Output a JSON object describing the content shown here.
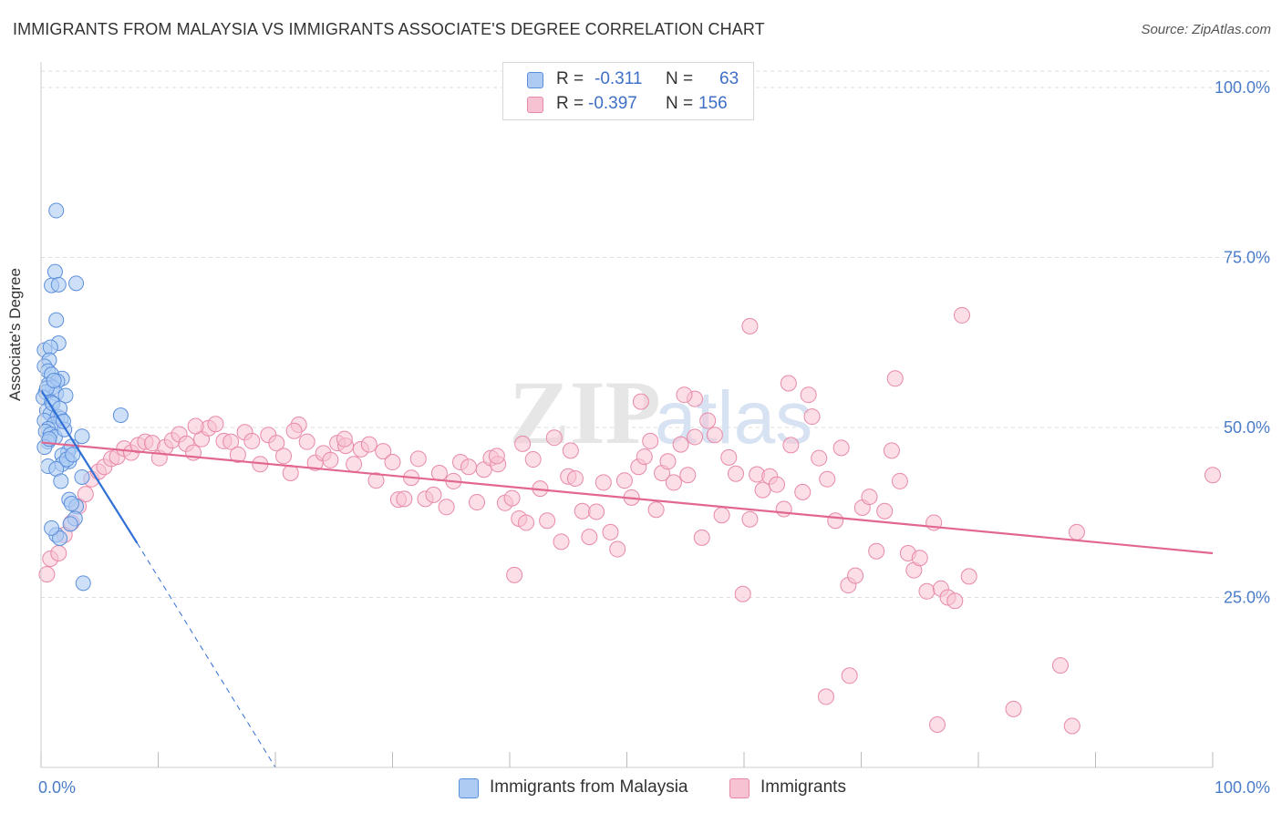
{
  "header": {
    "title": "IMMIGRANTS FROM MALAYSIA VS IMMIGRANTS ASSOCIATE'S DEGREE CORRELATION CHART",
    "source": "Source: ZipAtlas.com"
  },
  "legend": {
    "rows": [
      {
        "r_label": "R =",
        "r_value": "-0.311",
        "n_label": "N =",
        "n_value": "63"
      },
      {
        "r_label": "R =",
        "r_value": "-0.397",
        "n_label": "N =",
        "n_value": "156"
      }
    ]
  },
  "bottom_legend": {
    "series1": "Immigrants from Malaysia",
    "series2": "Immigrants"
  },
  "colors": {
    "blue_fill": "#aecbf3",
    "blue_stroke": "#5b8fdb",
    "blue_line": "#2f6fd6",
    "pink_fill": "#f7c2d2",
    "pink_stroke": "#e889a9",
    "pink_line": "#e2678f",
    "tick_text": "#4a7cc9"
  },
  "chart_data": {
    "type": "scatter",
    "title": "IMMIGRANTS FROM MALAYSIA VS IMMIGRANTS ASSOCIATE'S DEGREE CORRELATION CHART",
    "xlabel": "",
    "ylabel": "Associate's Degree",
    "xlim": [
      0,
      100
    ],
    "ylim": [
      0,
      100
    ],
    "x_tick_labels": [
      "0.0%",
      "100.0%"
    ],
    "y_tick_labels": [
      "25.0%",
      "50.0%",
      "75.0%",
      "100.0%"
    ],
    "y_ticks": [
      25,
      50,
      75,
      100
    ],
    "watermark": "ZIPatlas",
    "series": [
      {
        "name": "Immigrants from Malaysia",
        "r": -0.311,
        "n": 63,
        "trend": {
          "x0": 0,
          "y0": 55.5,
          "x1": 8.2,
          "y1": 33.0,
          "dash_x1": 20,
          "dash_y1": 0
        },
        "points": [
          [
            1.3,
            81.9
          ],
          [
            1.2,
            72.9
          ],
          [
            0.9,
            70.9
          ],
          [
            1.5,
            71.0
          ],
          [
            3.0,
            71.2
          ],
          [
            1.3,
            65.8
          ],
          [
            1.5,
            62.4
          ],
          [
            0.3,
            61.4
          ],
          [
            0.8,
            61.8
          ],
          [
            0.7,
            59.9
          ],
          [
            0.3,
            59.0
          ],
          [
            0.6,
            58.3
          ],
          [
            0.9,
            57.8
          ],
          [
            1.8,
            57.2
          ],
          [
            1.4,
            56.8
          ],
          [
            0.6,
            56.3
          ],
          [
            1.0,
            55.9
          ],
          [
            0.4,
            55.2
          ],
          [
            1.3,
            55.0
          ],
          [
            2.1,
            54.7
          ],
          [
            0.2,
            54.4
          ],
          [
            0.9,
            53.7
          ],
          [
            0.5,
            52.5
          ],
          [
            0.8,
            52.0
          ],
          [
            1.4,
            51.6
          ],
          [
            1.7,
            51.3
          ],
          [
            0.3,
            51.0
          ],
          [
            1.1,
            50.5
          ],
          [
            0.6,
            49.8
          ],
          [
            0.4,
            49.4
          ],
          [
            0.8,
            49.0
          ],
          [
            1.2,
            48.6
          ],
          [
            3.5,
            48.7
          ],
          [
            0.6,
            47.9
          ],
          [
            2.6,
            47.2
          ],
          [
            2.3,
            46.4
          ],
          [
            1.8,
            45.9
          ],
          [
            2.4,
            45.0
          ],
          [
            1.8,
            44.6
          ],
          [
            0.6,
            44.3
          ],
          [
            1.3,
            43.9
          ],
          [
            3.5,
            42.7
          ],
          [
            1.7,
            42.1
          ],
          [
            2.4,
            39.4
          ],
          [
            3.0,
            38.4
          ],
          [
            2.6,
            38.8
          ],
          [
            2.9,
            36.6
          ],
          [
            2.5,
            35.8
          ],
          [
            1.3,
            34.2
          ],
          [
            1.6,
            33.7
          ],
          [
            0.9,
            35.2
          ],
          [
            3.6,
            27.1
          ],
          [
            6.8,
            51.8
          ],
          [
            1.0,
            53.5
          ],
          [
            0.5,
            55.8
          ],
          [
            2.0,
            49.7
          ],
          [
            0.3,
            47.1
          ],
          [
            1.6,
            52.8
          ],
          [
            2.2,
            45.3
          ],
          [
            1.1,
            56.9
          ],
          [
            2.7,
            46.0
          ],
          [
            0.7,
            48.3
          ],
          [
            1.9,
            50.9
          ]
        ]
      },
      {
        "name": "Immigrants",
        "r": -0.397,
        "n": 156,
        "trend": {
          "x0": 0,
          "y0": 47.8,
          "x1": 100,
          "y1": 31.5
        },
        "points": [
          [
            0.5,
            28.4
          ],
          [
            0.8,
            30.7
          ],
          [
            1.5,
            31.5
          ],
          [
            2.0,
            34.2
          ],
          [
            2.6,
            36.0
          ],
          [
            3.2,
            38.4
          ],
          [
            3.8,
            40.2
          ],
          [
            4.3,
            42.4
          ],
          [
            4.9,
            43.5
          ],
          [
            5.4,
            44.2
          ],
          [
            6.0,
            45.4
          ],
          [
            6.5,
            45.7
          ],
          [
            7.1,
            46.9
          ],
          [
            7.7,
            46.3
          ],
          [
            8.3,
            47.4
          ],
          [
            8.9,
            47.9
          ],
          [
            9.5,
            47.7
          ],
          [
            10.1,
            45.5
          ],
          [
            10.6,
            47.1
          ],
          [
            11.2,
            48.1
          ],
          [
            11.8,
            49.0
          ],
          [
            12.4,
            47.6
          ],
          [
            13.0,
            46.3
          ],
          [
            13.7,
            48.3
          ],
          [
            14.3,
            49.9
          ],
          [
            14.9,
            50.5
          ],
          [
            15.6,
            48.0
          ],
          [
            16.2,
            47.9
          ],
          [
            16.8,
            46.0
          ],
          [
            17.4,
            49.3
          ],
          [
            18.0,
            48.0
          ],
          [
            18.7,
            44.6
          ],
          [
            19.4,
            48.9
          ],
          [
            20.1,
            47.7
          ],
          [
            20.7,
            45.8
          ],
          [
            21.3,
            43.3
          ],
          [
            22.0,
            50.4
          ],
          [
            22.7,
            47.9
          ],
          [
            23.4,
            44.8
          ],
          [
            24.1,
            46.2
          ],
          [
            24.7,
            45.2
          ],
          [
            25.3,
            47.7
          ],
          [
            26.0,
            47.3
          ],
          [
            26.7,
            44.6
          ],
          [
            27.3,
            46.8
          ],
          [
            28.0,
            47.5
          ],
          [
            28.6,
            42.2
          ],
          [
            29.2,
            46.5
          ],
          [
            30.0,
            44.9
          ],
          [
            30.5,
            39.4
          ],
          [
            31.0,
            39.5
          ],
          [
            31.6,
            42.6
          ],
          [
            32.2,
            45.4
          ],
          [
            32.8,
            39.5
          ],
          [
            33.5,
            40.1
          ],
          [
            34.0,
            43.3
          ],
          [
            34.6,
            38.3
          ],
          [
            35.2,
            42.1
          ],
          [
            35.8,
            44.9
          ],
          [
            36.5,
            44.2
          ],
          [
            37.2,
            39.0
          ],
          [
            37.8,
            43.8
          ],
          [
            38.4,
            45.5
          ],
          [
            39.0,
            44.6
          ],
          [
            39.6,
            38.9
          ],
          [
            40.2,
            39.6
          ],
          [
            40.8,
            36.6
          ],
          [
            41.4,
            36.0
          ],
          [
            42.0,
            45.3
          ],
          [
            42.6,
            41.0
          ],
          [
            43.2,
            36.3
          ],
          [
            43.8,
            48.5
          ],
          [
            44.4,
            33.2
          ],
          [
            45.0,
            42.8
          ],
          [
            45.6,
            42.5
          ],
          [
            46.2,
            37.7
          ],
          [
            46.8,
            33.9
          ],
          [
            47.4,
            37.6
          ],
          [
            48.0,
            41.9
          ],
          [
            48.6,
            34.6
          ],
          [
            49.2,
            32.1
          ],
          [
            49.8,
            42.2
          ],
          [
            50.4,
            39.7
          ],
          [
            51.0,
            44.2
          ],
          [
            51.5,
            45.7
          ],
          [
            52.0,
            48.0
          ],
          [
            52.5,
            37.9
          ],
          [
            53.0,
            43.3
          ],
          [
            53.5,
            45.0
          ],
          [
            54.0,
            41.9
          ],
          [
            54.6,
            47.5
          ],
          [
            55.2,
            43.0
          ],
          [
            55.8,
            48.6
          ],
          [
            56.4,
            33.8
          ],
          [
            56.9,
            51.0
          ],
          [
            57.5,
            48.9
          ],
          [
            58.1,
            37.1
          ],
          [
            58.7,
            45.6
          ],
          [
            59.3,
            43.2
          ],
          [
            59.9,
            25.5
          ],
          [
            60.5,
            36.5
          ],
          [
            61.1,
            43.1
          ],
          [
            61.6,
            40.8
          ],
          [
            62.2,
            42.8
          ],
          [
            62.8,
            41.6
          ],
          [
            63.4,
            38.0
          ],
          [
            64.0,
            47.4
          ],
          [
            63.8,
            56.5
          ],
          [
            65.0,
            40.5
          ],
          [
            65.5,
            54.8
          ],
          [
            65.8,
            51.6
          ],
          [
            66.4,
            45.5
          ],
          [
            67.1,
            42.4
          ],
          [
            67.8,
            36.3
          ],
          [
            68.3,
            47.0
          ],
          [
            68.9,
            26.8
          ],
          [
            69.5,
            28.2
          ],
          [
            70.1,
            38.2
          ],
          [
            70.7,
            39.8
          ],
          [
            71.3,
            31.8
          ],
          [
            72.0,
            37.7
          ],
          [
            72.6,
            46.6
          ],
          [
            73.3,
            42.1
          ],
          [
            74.0,
            31.5
          ],
          [
            74.5,
            29.0
          ],
          [
            75.0,
            30.8
          ],
          [
            75.6,
            25.9
          ],
          [
            76.2,
            36.0
          ],
          [
            76.8,
            26.3
          ],
          [
            77.4,
            25.0
          ],
          [
            78.0,
            24.5
          ],
          [
            78.6,
            66.5
          ],
          [
            79.2,
            28.1
          ],
          [
            72.9,
            57.2
          ],
          [
            60.5,
            64.9
          ],
          [
            55.8,
            54.2
          ],
          [
            54.9,
            54.8
          ],
          [
            51.2,
            53.8
          ],
          [
            40.4,
            28.3
          ],
          [
            67.0,
            10.4
          ],
          [
            69.0,
            13.5
          ],
          [
            76.5,
            6.3
          ],
          [
            83.0,
            8.6
          ],
          [
            88.0,
            6.1
          ],
          [
            87.0,
            15.0
          ],
          [
            88.4,
            34.6
          ],
          [
            100.0,
            43.0
          ],
          [
            45.2,
            46.6
          ],
          [
            41.1,
            47.6
          ],
          [
            38.9,
            45.8
          ],
          [
            25.9,
            48.3
          ],
          [
            21.6,
            49.5
          ],
          [
            13.2,
            50.2
          ]
        ]
      }
    ]
  }
}
